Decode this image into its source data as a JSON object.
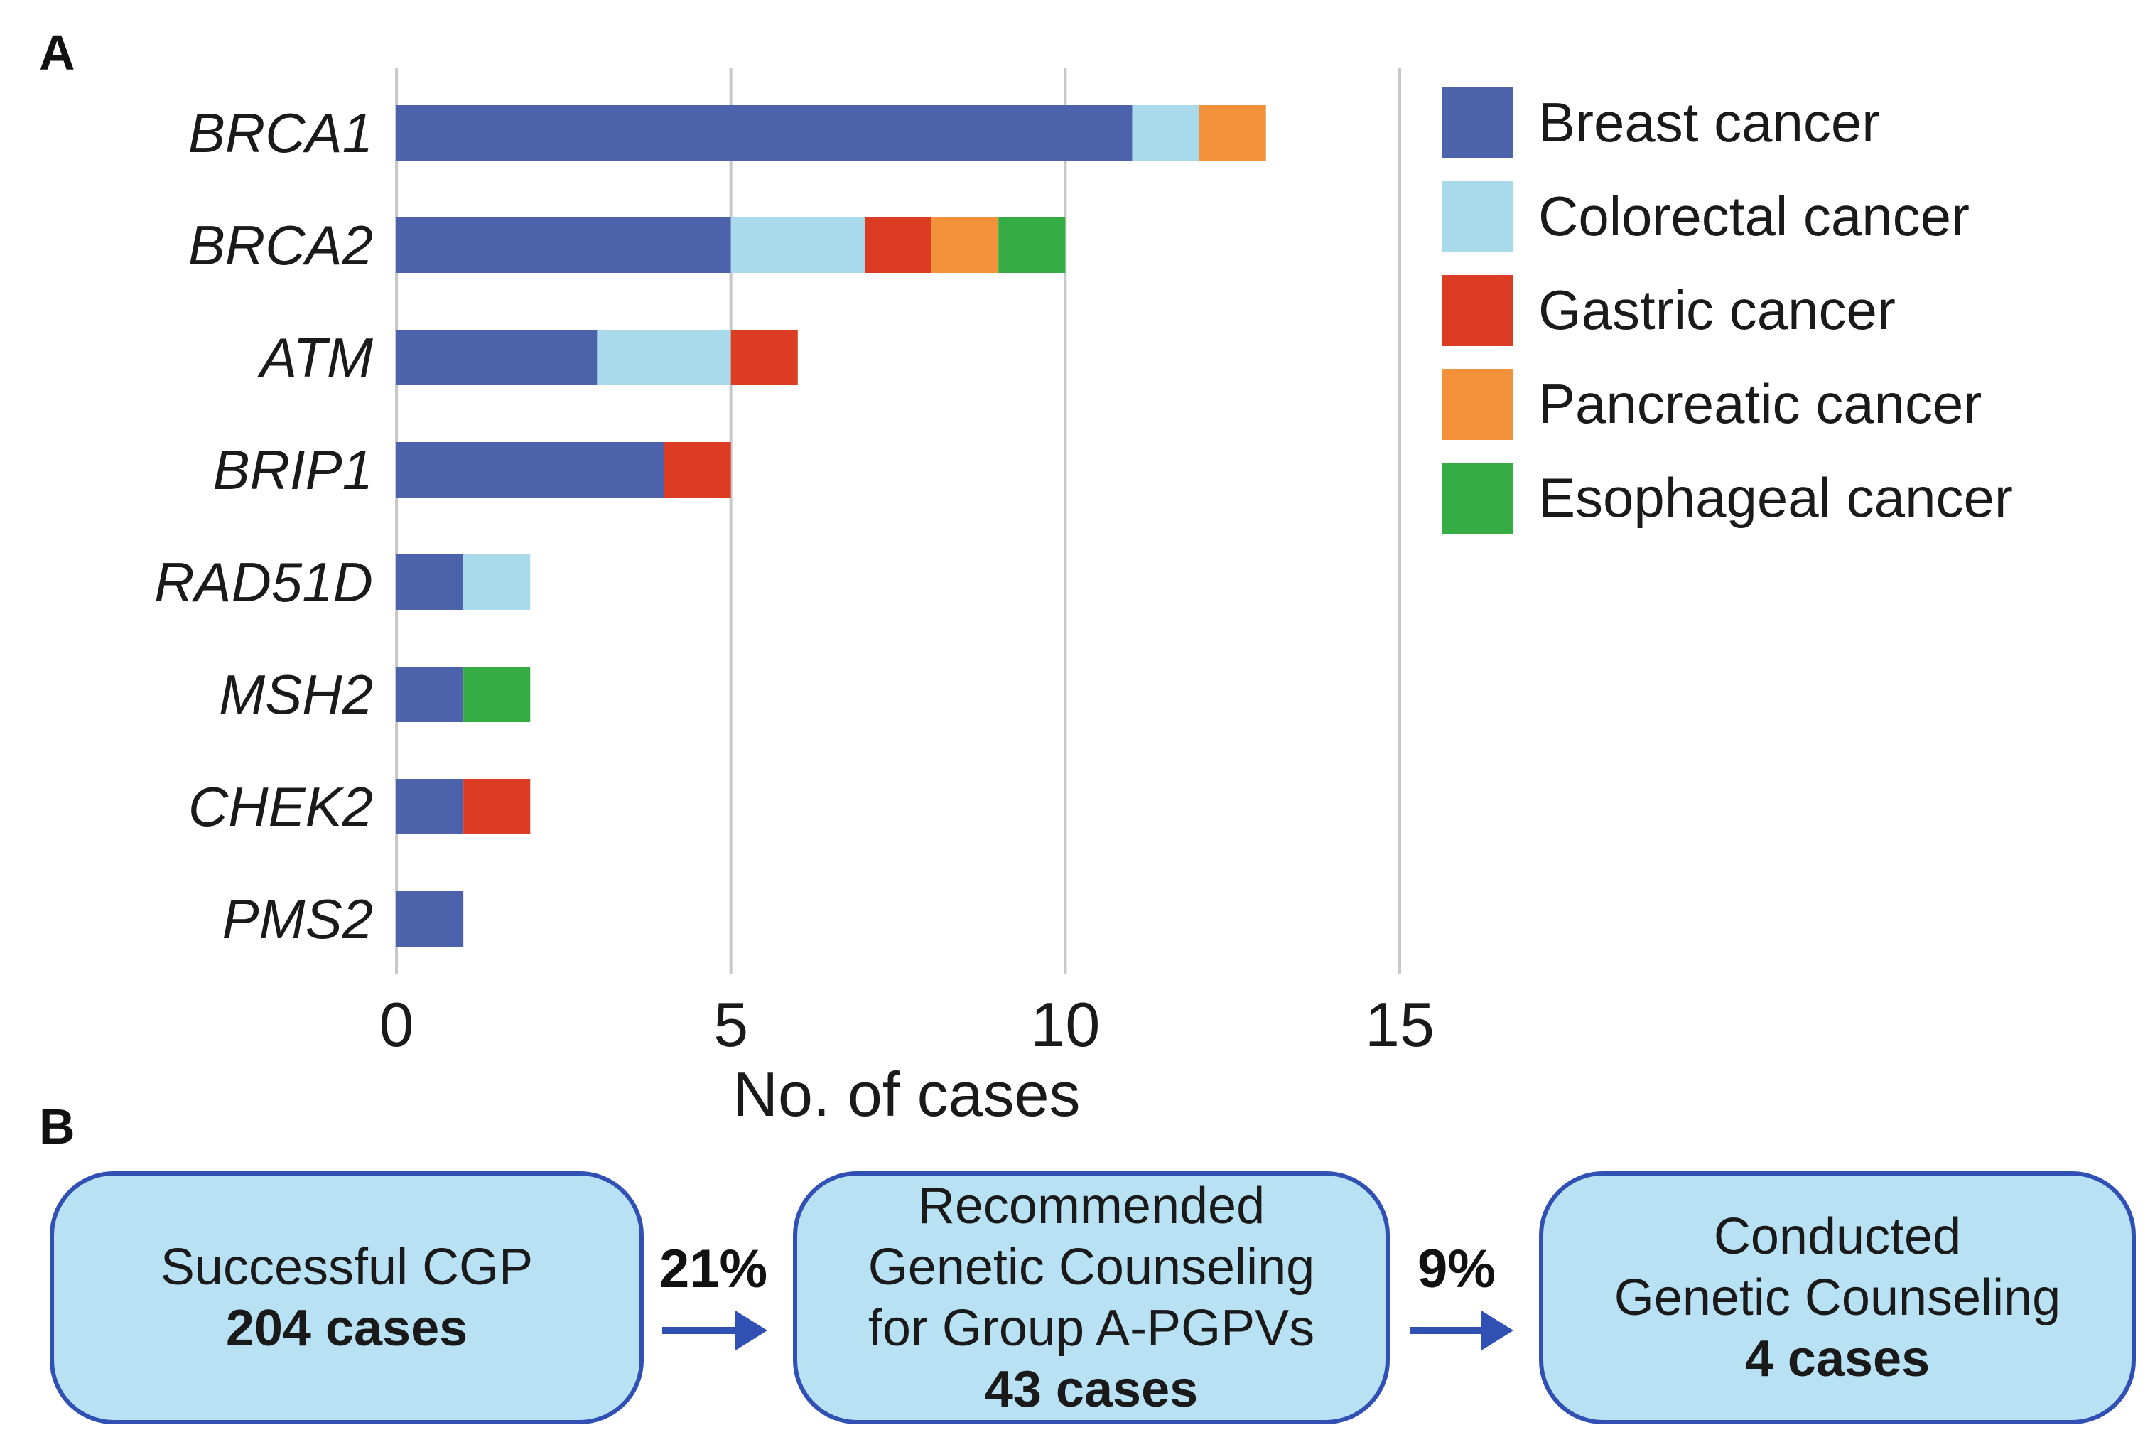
{
  "panel_a_label": "A",
  "panel_b_label": "B",
  "chart_data": {
    "type": "bar",
    "orientation": "horizontal",
    "stacked": true,
    "categories": [
      "BRCA1",
      "BRCA2",
      "ATM",
      "BRIP1",
      "RAD51D",
      "MSH2",
      "CHEK2",
      "PMS2"
    ],
    "series": [
      {
        "name": "Breast cancer",
        "color": "#4c63ab",
        "values": [
          11,
          5,
          3,
          4,
          1,
          1,
          1,
          1
        ]
      },
      {
        "name": "Colorectal cancer",
        "color": "#a9daec",
        "values": [
          1,
          2,
          2,
          0,
          1,
          0,
          0,
          0
        ]
      },
      {
        "name": "Gastric cancer",
        "color": "#dc3b24",
        "values": [
          0,
          1,
          1,
          1,
          0,
          0,
          1,
          0
        ]
      },
      {
        "name": "Pancreatic cancer",
        "color": "#f3923a",
        "values": [
          1,
          1,
          0,
          0,
          0,
          0,
          0,
          0
        ]
      },
      {
        "name": "Esophageal cancer",
        "color": "#36ac44",
        "values": [
          0,
          1,
          0,
          0,
          0,
          1,
          0,
          0
        ]
      }
    ],
    "xlabel": "No. of cases",
    "xlim": [
      0,
      15
    ],
    "xticks": [
      0,
      5,
      10,
      15
    ],
    "xtick_labels": [
      "0",
      "5",
      "10",
      "15"
    ],
    "grid": "vertical",
    "legend_position": "right"
  },
  "flowchart": {
    "boxes": [
      {
        "lines": [
          "Successful CGP"
        ],
        "bold_line": "204 cases"
      },
      {
        "lines": [
          "Recommended",
          "Genetic Counseling",
          "for Group A-PGPVs"
        ],
        "bold_line": "43 cases"
      },
      {
        "lines": [
          "Conducted",
          "Genetic Counseling"
        ],
        "bold_line": "4 cases"
      }
    ],
    "arrows": [
      {
        "label": "21%"
      },
      {
        "label": "9%"
      }
    ],
    "colors": {
      "fill": "#b9e1f4",
      "border": "#3050b4",
      "arrow": "#3050b4"
    }
  }
}
